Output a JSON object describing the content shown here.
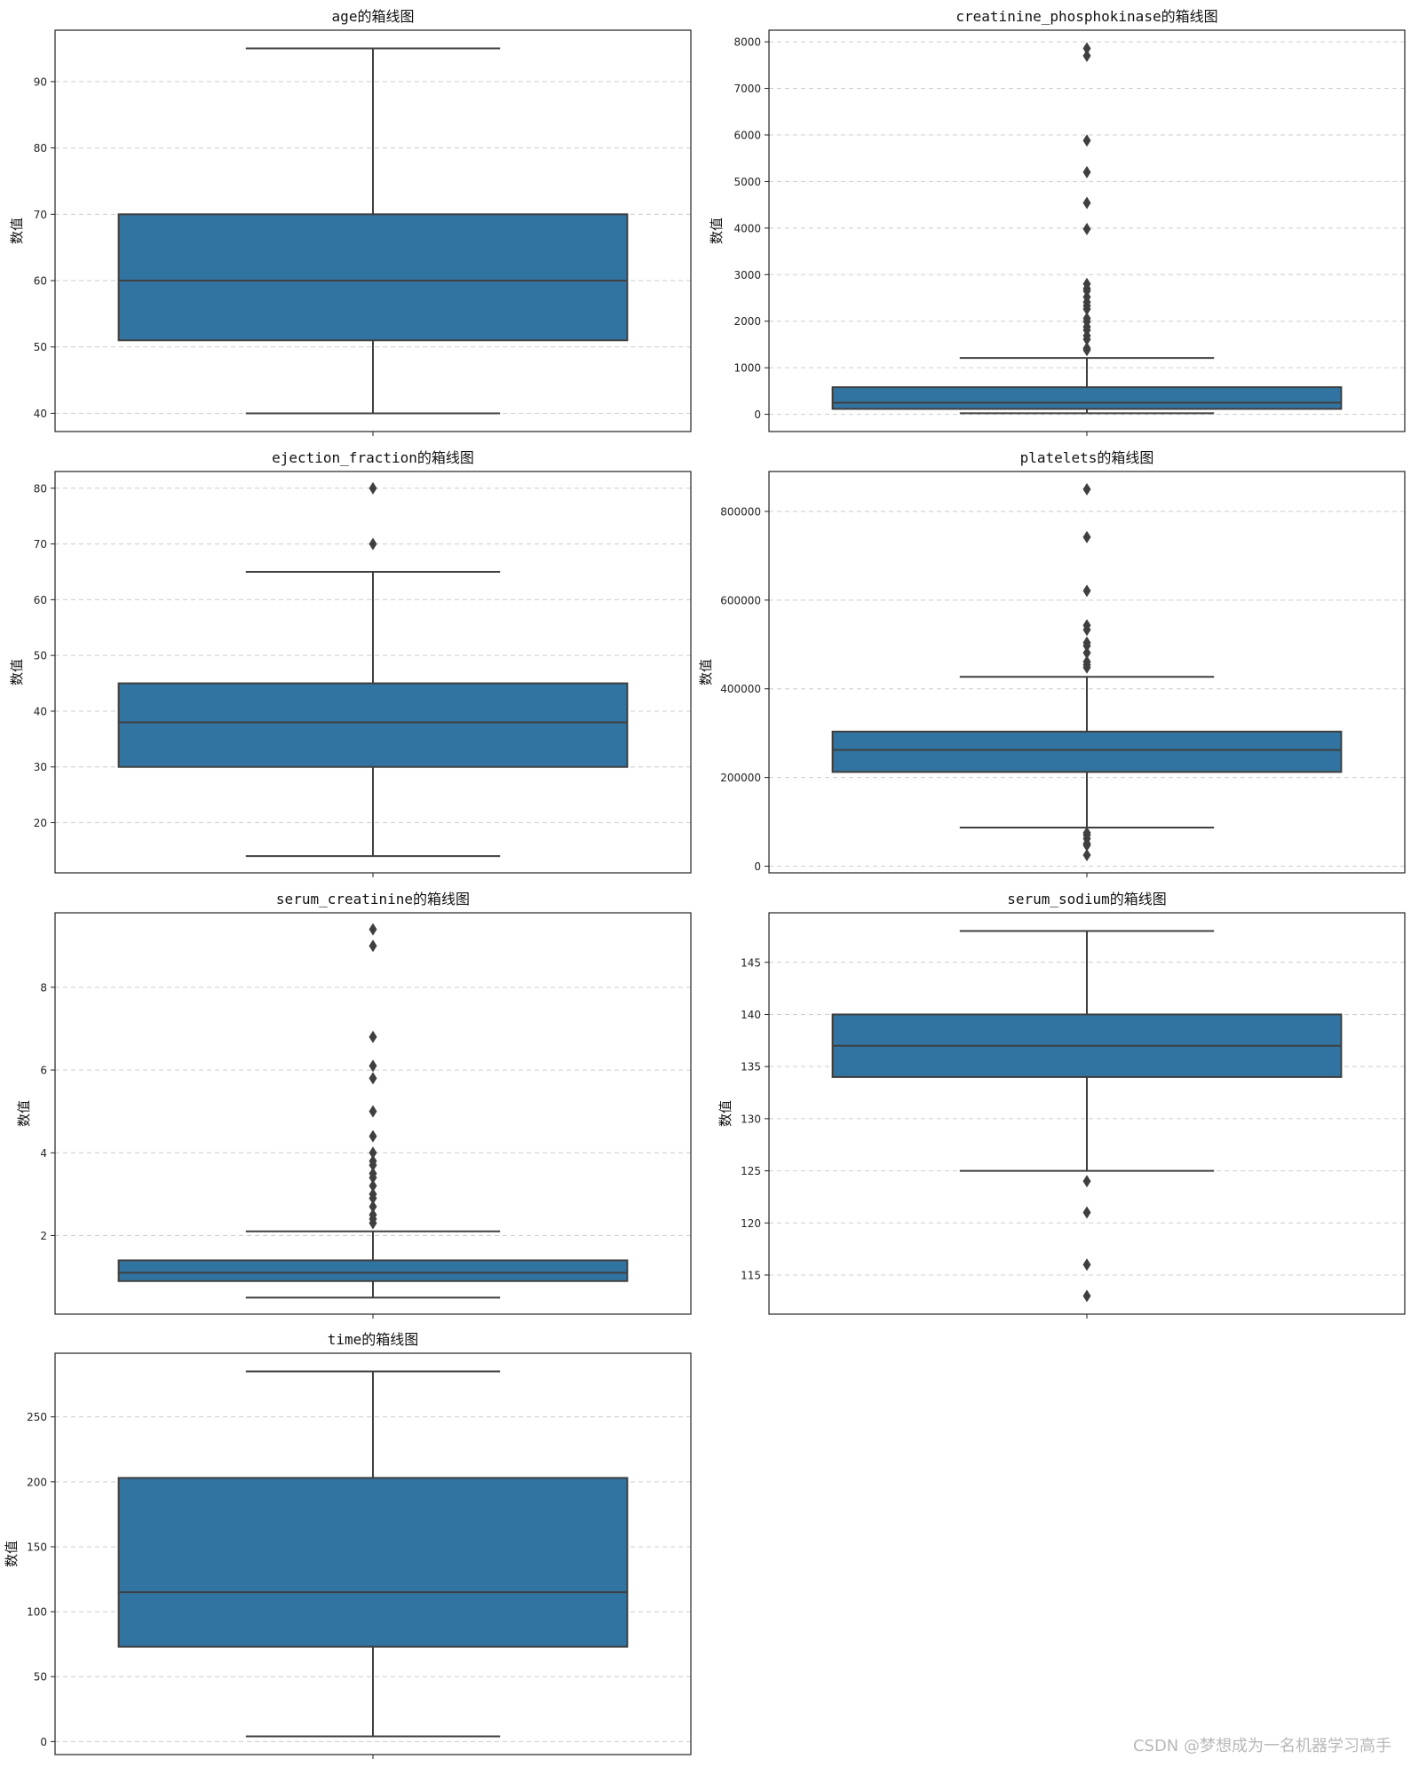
{
  "chart_data": [
    {
      "type": "box",
      "title": "age的箱线图",
      "ylabel": "数值",
      "ylim": [
        37.25,
        97.75
      ],
      "yticks": [
        40,
        50,
        60,
        70,
        80,
        90
      ],
      "box": {
        "whisker_low": 40,
        "q1": 51,
        "median": 60,
        "q3": 70,
        "whisker_high": 95
      },
      "outliers": [],
      "grid": true
    },
    {
      "type": "box",
      "title": "creatinine_phosphokinase的箱线图",
      "ylabel": "数值",
      "ylim": [
        -370,
        8250
      ],
      "yticks": [
        0,
        1000,
        2000,
        3000,
        4000,
        5000,
        6000,
        7000,
        8000
      ],
      "box": {
        "whisker_low": 23,
        "q1": 116,
        "median": 250,
        "q3": 582,
        "whisker_high": 1211
      },
      "outliers": [
        1380,
        1420,
        1610,
        1690,
        1810,
        1880,
        1990,
        2060,
        2260,
        2330,
        2410,
        2520,
        2650,
        2700,
        2800,
        3980,
        4540,
        5200,
        5880,
        7700,
        7860
      ],
      "grid": true
    },
    {
      "type": "box",
      "title": "ejection_fraction的箱线图",
      "ylabel": "数值",
      "ylim": [
        11,
        83
      ],
      "yticks": [
        20,
        30,
        40,
        50,
        60,
        70,
        80
      ],
      "box": {
        "whisker_low": 14,
        "q1": 30,
        "median": 38,
        "q3": 45,
        "whisker_high": 65
      },
      "outliers": [
        70,
        80
      ],
      "grid": true
    },
    {
      "type": "box",
      "title": "platelets的箱线图",
      "ylabel": "数值",
      "ylim": [
        -15000,
        890000
      ],
      "yticks": [
        0,
        200000,
        400000,
        600000,
        800000
      ],
      "box": {
        "whisker_low": 87000,
        "q1": 212500,
        "median": 262000,
        "q3": 303500,
        "whisker_high": 427000
      },
      "outliers": [
        25100,
        47000,
        51000,
        62000,
        70000,
        75000,
        448000,
        454000,
        461000,
        481000,
        497000,
        504000,
        533000,
        543000,
        621000,
        742000,
        850000
      ],
      "grid": true
    },
    {
      "type": "box",
      "title": "serum_creatinine的箱线图",
      "ylabel": "数值",
      "ylim": [
        0.1,
        9.8
      ],
      "yticks": [
        2,
        4,
        6,
        8
      ],
      "box": {
        "whisker_low": 0.5,
        "q1": 0.9,
        "median": 1.1,
        "q3": 1.4,
        "whisker_high": 2.1
      },
      "outliers": [
        2.3,
        2.4,
        2.5,
        2.7,
        2.9,
        3.0,
        3.2,
        3.4,
        3.5,
        3.7,
        3.8,
        4.0,
        4.4,
        5.0,
        5.8,
        6.1,
        6.8,
        9.0,
        9.4
      ],
      "grid": true
    },
    {
      "type": "box",
      "title": "serum_sodium的箱线图",
      "ylabel": "数值",
      "ylim": [
        111.25,
        149.75
      ],
      "yticks": [
        115,
        120,
        125,
        130,
        135,
        140,
        145
      ],
      "box": {
        "whisker_low": 125,
        "q1": 134,
        "median": 137,
        "q3": 140,
        "whisker_high": 148
      },
      "outliers": [
        124,
        121,
        116,
        113
      ],
      "grid": true
    },
    {
      "type": "box",
      "title": "time的箱线图",
      "ylabel": "数值",
      "ylim": [
        -10,
        299
      ],
      "yticks": [
        0,
        50,
        100,
        150,
        200,
        250
      ],
      "box": {
        "whisker_low": 4,
        "q1": 73,
        "median": 115,
        "q3": 203,
        "whisker_high": 285
      },
      "outliers": [],
      "grid": true
    }
  ],
  "colors": {
    "box_fill": "#3274a1",
    "line": "#3f3f3f",
    "grid": "#cccccc",
    "axes": "#222222"
  },
  "watermark": "CSDN @梦想成为一名机器学习高手"
}
